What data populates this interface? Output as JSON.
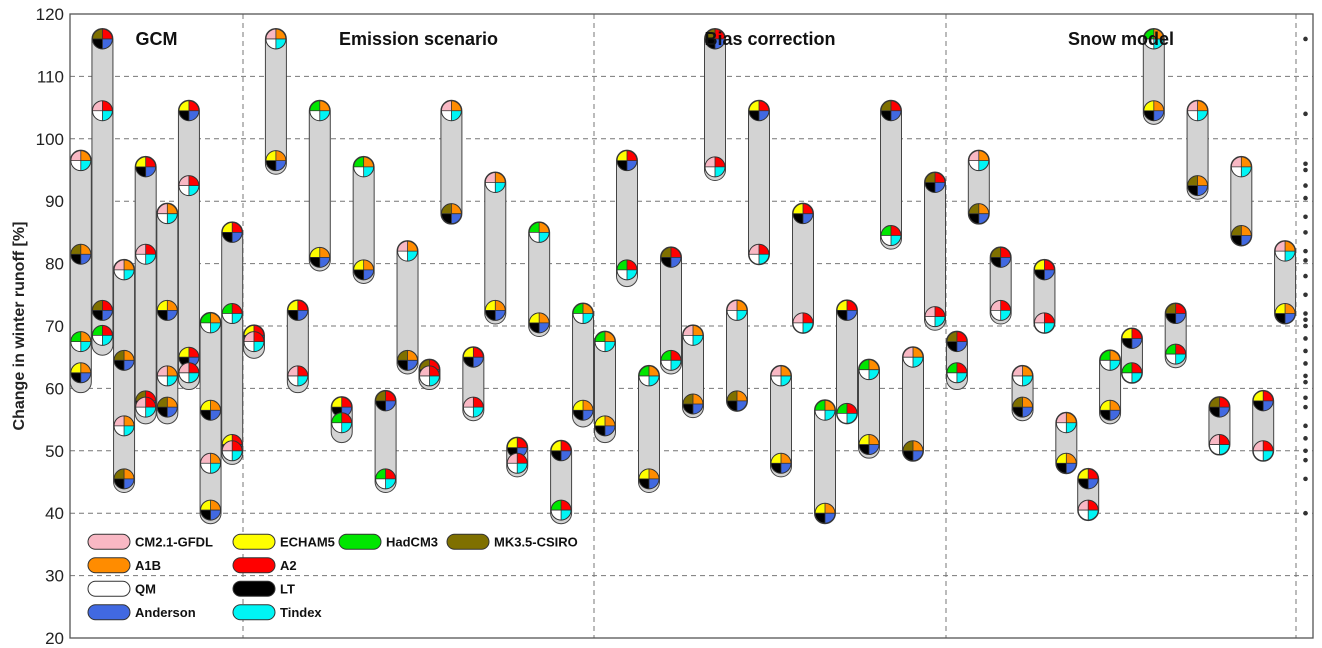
{
  "chart_data": {
    "type": "range-bars",
    "ylabel": "Change in winter runoff [%]",
    "ylim": [
      20,
      120
    ],
    "yticks": [
      20,
      30,
      40,
      50,
      60,
      70,
      80,
      90,
      100,
      110,
      120
    ],
    "grid": "horizontal dashed",
    "groups": [
      {
        "label": "GCM",
        "bars": [
          {
            "low": 61,
            "high": 96.5,
            "markers": [
              96.5,
              81.5,
              67.5,
              62.5
            ]
          },
          {
            "low": 67,
            "high": 116,
            "markers": [
              116,
              104.5,
              72.5,
              68.5
            ]
          },
          {
            "low": 45,
            "high": 79,
            "markers": [
              79,
              64.5,
              54,
              45.5
            ]
          },
          {
            "low": 56,
            "high": 95.5,
            "markers": [
              95.5,
              81.5,
              58,
              57
            ]
          },
          {
            "low": 56,
            "high": 88,
            "markers": [
              88,
              72.5,
              62,
              57
            ]
          },
          {
            "low": 61.5,
            "high": 104.5,
            "markers": [
              104.5,
              92.5,
              65,
              62.5
            ]
          },
          {
            "low": 40,
            "high": 70.5,
            "markers": [
              70.5,
              56.5,
              48,
              40.5
            ]
          },
          {
            "low": 49.5,
            "high": 85,
            "markers": [
              85,
              72,
              51,
              50
            ]
          }
        ]
      },
      {
        "label": "Emission scenario",
        "bars": [
          {
            "low": 66.5,
            "high": 68.5,
            "markers": [
              68.5,
              67.5
            ]
          },
          {
            "low": 96,
            "high": 116,
            "markers": [
              116,
              96.5
            ]
          },
          {
            "low": 61,
            "high": 72.5,
            "markers": [
              72.5,
              62
            ]
          },
          {
            "low": 80.5,
            "high": 104.5,
            "markers": [
              104.5,
              81
            ]
          },
          {
            "low": 53,
            "high": 57,
            "markers": [
              57,
              54.5
            ]
          },
          {
            "low": 78.5,
            "high": 95.5,
            "markers": [
              95.5,
              79
            ]
          },
          {
            "low": 45,
            "high": 58,
            "markers": [
              58,
              45.5
            ]
          },
          {
            "low": 64,
            "high": 82,
            "markers": [
              82,
              64.5
            ]
          },
          {
            "low": 61.5,
            "high": 63,
            "markers": [
              63,
              62
            ]
          },
          {
            "low": 88,
            "high": 104.5,
            "markers": [
              104.5,
              88
            ]
          },
          {
            "low": 56.5,
            "high": 65,
            "markers": [
              65,
              57
            ]
          },
          {
            "low": 72,
            "high": 93,
            "markers": [
              93,
              72.5
            ]
          },
          {
            "low": 47.5,
            "high": 50.5,
            "markers": [
              50.5,
              48
            ]
          },
          {
            "low": 70,
            "high": 85,
            "markers": [
              85,
              70.5
            ]
          },
          {
            "low": 40,
            "high": 50,
            "markers": [
              50,
              40.5
            ]
          },
          {
            "low": 55.5,
            "high": 72,
            "markers": [
              72,
              56.5
            ]
          }
        ]
      },
      {
        "label": "Bias correction",
        "bars": [
          {
            "low": 53,
            "high": 67.5,
            "markers": [
              67.5,
              54
            ]
          },
          {
            "low": 78,
            "high": 96.5,
            "markers": [
              96.5,
              79
            ]
          },
          {
            "low": 45,
            "high": 62,
            "markers": [
              62,
              45.5
            ]
          },
          {
            "low": 64,
            "high": 81,
            "markers": [
              81,
              64.5
            ]
          },
          {
            "low": 57,
            "high": 68.5,
            "markers": [
              68.5,
              57.5
            ]
          },
          {
            "low": 95,
            "high": 116,
            "markers": [
              116,
              95.5
            ]
          },
          {
            "low": 58,
            "high": 72.5,
            "markers": [
              72.5,
              58
            ]
          },
          {
            "low": 81.5,
            "high": 104.5,
            "markers": [
              104.5,
              81.5
            ]
          },
          {
            "low": 47.5,
            "high": 62,
            "markers": [
              62,
              48
            ]
          },
          {
            "low": 70.5,
            "high": 88,
            "markers": [
              88,
              70.5
            ]
          },
          {
            "low": 40,
            "high": 56.5,
            "markers": [
              56.5,
              40
            ]
          },
          {
            "low": 56,
            "high": 72.5,
            "markers": [
              72.5,
              56
            ]
          },
          {
            "low": 50.5,
            "high": 63,
            "markers": [
              63,
              51
            ]
          },
          {
            "low": 84,
            "high": 104.5,
            "markers": [
              104.5,
              84.5
            ]
          },
          {
            "low": 50,
            "high": 65,
            "markers": [
              65,
              50
            ]
          },
          {
            "low": 71,
            "high": 93,
            "markers": [
              93,
              71.5
            ]
          }
        ]
      },
      {
        "label": "Snow model",
        "bars": [
          {
            "low": 61.5,
            "high": 67.5,
            "markers": [
              67.5,
              62.5
            ]
          },
          {
            "low": 88,
            "high": 96.5,
            "markers": [
              96.5,
              88
            ]
          },
          {
            "low": 72,
            "high": 81,
            "markers": [
              81,
              72.5
            ]
          },
          {
            "low": 56.5,
            "high": 62,
            "markers": [
              62,
              57
            ]
          },
          {
            "low": 70.5,
            "high": 79,
            "markers": [
              79,
              70.5
            ]
          },
          {
            "low": 48,
            "high": 54.5,
            "markers": [
              54.5,
              48
            ]
          },
          {
            "low": 40.5,
            "high": 45.5,
            "markers": [
              45.5,
              40.5
            ]
          },
          {
            "low": 56,
            "high": 64.5,
            "markers": [
              64.5,
              56.5
            ]
          },
          {
            "low": 62.5,
            "high": 68,
            "markers": [
              68,
              62.5
            ]
          },
          {
            "low": 104,
            "high": 116,
            "markers": [
              116,
              104.5
            ]
          },
          {
            "low": 65,
            "high": 72,
            "markers": [
              72,
              65.5
            ]
          },
          {
            "low": 92,
            "high": 104.5,
            "markers": [
              104.5,
              92.5
            ]
          },
          {
            "low": 51,
            "high": 57,
            "markers": [
              57,
              51
            ]
          },
          {
            "low": 84.5,
            "high": 95.5,
            "markers": [
              95.5,
              84.5
            ]
          },
          {
            "low": 50,
            "high": 58,
            "markers": [
              58,
              50
            ]
          },
          {
            "low": 72,
            "high": 82,
            "markers": [
              82,
              72
            ]
          }
        ]
      }
    ],
    "dots": [
      116,
      104,
      96,
      95,
      92.5,
      90.5,
      87.5,
      85,
      82,
      80.5,
      78,
      75,
      72,
      71,
      70,
      68,
      66,
      64,
      62,
      61,
      58.5,
      57,
      54,
      52,
      50,
      48.5,
      45.5,
      40
    ],
    "legend": {
      "position": "bottom-left",
      "rows": [
        [
          {
            "label": "CM2.1-GFDL",
            "color": "#f9b8c4"
          },
          {
            "label": "ECHAM5",
            "color": "#ffff00"
          },
          {
            "label": "HadCM3",
            "color": "#00e600"
          },
          {
            "label": "MK3.5-CSIRO",
            "color": "#7f7000"
          }
        ],
        [
          {
            "label": "A1B",
            "color": "#ff8c00"
          },
          {
            "label": "A2",
            "color": "#ff0000"
          }
        ],
        [
          {
            "label": "QM",
            "color": "#ffffff"
          },
          {
            "label": "LT",
            "color": "#000000"
          }
        ],
        [
          {
            "label": "Anderson",
            "color": "#4169e1"
          },
          {
            "label": "Tindex",
            "color": "#00f5f5"
          }
        ]
      ]
    }
  }
}
